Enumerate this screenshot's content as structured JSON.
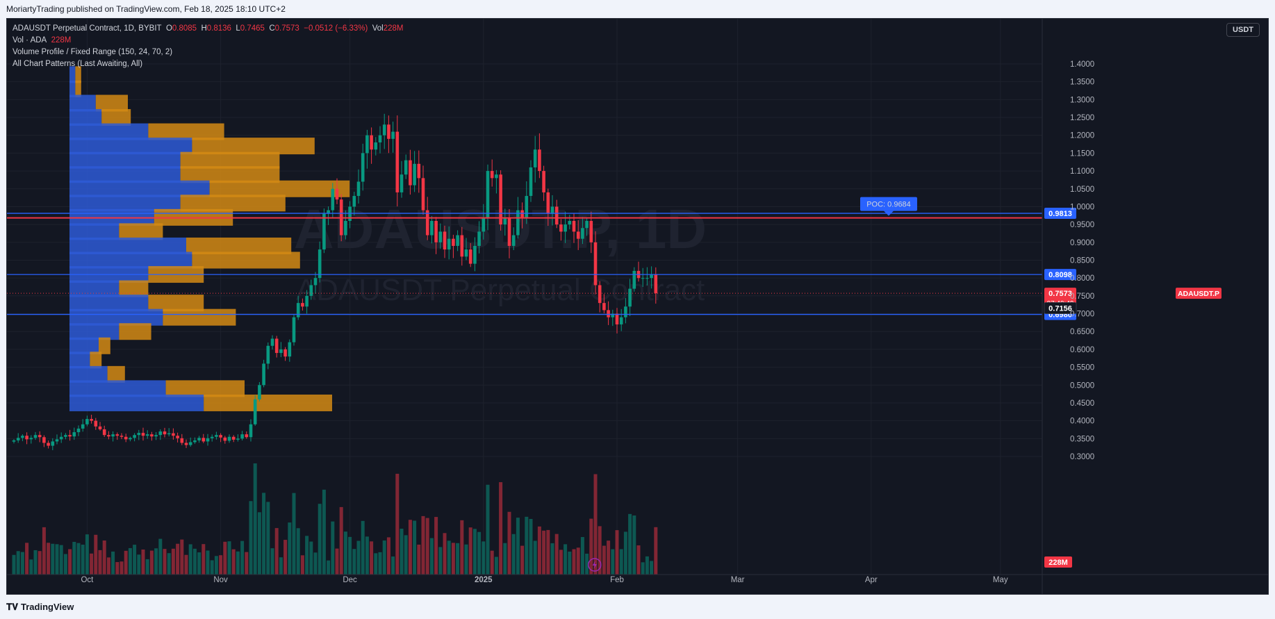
{
  "header": {
    "publisher": "MoriartyTrading published on TradingView.com, Feb 18, 2025 18:10 UTC+2",
    "brand": "TradingView"
  },
  "legend": {
    "symbol": "ADAUSDT Perpetual Contract, 1D, BYBIT",
    "o_label": "O",
    "o_value": "0.8085",
    "h_label": "H",
    "h_value": "0.8136",
    "l_label": "L",
    "l_value": "0.7465",
    "c_label": "C",
    "c_value": "0.7573",
    "change": "−0.0512 (−6.33%)",
    "vol_label": "Vol",
    "vol_value": "228M",
    "vol_line_label": "Vol · ADA",
    "vol_line_value": "228M",
    "indicator1": "Volume Profile / Fixed Range (150, 24, 70, 2)",
    "indicator2": "All Chart Patterns (Last Awaiting, All)"
  },
  "unit_button": "USDT",
  "watermark": {
    "big": "ADAUSDT.P, 1D",
    "small": "ADAUSDT Perpetual Contract"
  },
  "colors": {
    "bg": "#131722",
    "up": "#089981",
    "down": "#f23645",
    "level": "#2962ff",
    "poc": "#f23645",
    "vp_up": "#2e5bd6",
    "vp_down": "#d48a14"
  },
  "chart_data": {
    "type": "candlestick",
    "ylim": [
      0.25,
      1.44
    ],
    "y_ticks": [
      "1.4000",
      "1.3500",
      "1.3000",
      "1.2500",
      "1.2000",
      "1.1500",
      "1.1000",
      "1.0500",
      "1.0000",
      "0.9500",
      "0.9000",
      "0.8500",
      "0.8000",
      "0.7500",
      "0.7000",
      "0.6500",
      "0.6000",
      "0.5500",
      "0.5000",
      "0.4500",
      "0.4000",
      "0.3500",
      "0.3000"
    ],
    "x_ticks": [
      {
        "label": "Oct",
        "day": 17
      },
      {
        "label": "Nov",
        "day": 48
      },
      {
        "label": "Dec",
        "day": 78
      },
      {
        "label": "2025",
        "day": 109
      },
      {
        "label": "Feb",
        "day": 140
      },
      {
        "label": "Mar",
        "day": 168
      },
      {
        "label": "Apr",
        "day": 199
      },
      {
        "label": "May",
        "day": 229
      }
    ],
    "current_day": 134,
    "closes": [
      0.345,
      0.352,
      0.358,
      0.348,
      0.352,
      0.36,
      0.354,
      0.338,
      0.33,
      0.342,
      0.348,
      0.355,
      0.36,
      0.356,
      0.368,
      0.378,
      0.39,
      0.405,
      0.4,
      0.384,
      0.376,
      0.36,
      0.356,
      0.362,
      0.358,
      0.355,
      0.348,
      0.352,
      0.36,
      0.366,
      0.358,
      0.362,
      0.356,
      0.36,
      0.37,
      0.362,
      0.365,
      0.358,
      0.351,
      0.338,
      0.332,
      0.34,
      0.345,
      0.352,
      0.342,
      0.351,
      0.355,
      0.36,
      0.353,
      0.344,
      0.355,
      0.347,
      0.35,
      0.362,
      0.354,
      0.39,
      0.46,
      0.5,
      0.56,
      0.61,
      0.63,
      0.59,
      0.6,
      0.58,
      0.62,
      0.69,
      0.73,
      0.72,
      0.75,
      0.78,
      0.8,
      0.88,
      0.98,
      0.99,
      1.05,
      1.02,
      0.92,
      0.96,
      1.0,
      1.03,
      1.07,
      1.15,
      1.2,
      1.16,
      1.18,
      1.2,
      1.23,
      1.19,
      1.21,
      1.04,
      1.09,
      1.13,
      1.06,
      1.12,
      1.08,
      0.99,
      0.92,
      0.96,
      0.9,
      0.93,
      0.88,
      0.91,
      0.89,
      0.92,
      0.86,
      0.88,
      0.84,
      0.89,
      0.93,
      0.97,
      1.1,
      1.08,
      1.09,
      0.95,
      0.97,
      0.89,
      0.92,
      0.99,
      0.97,
      1.03,
      1.11,
      1.16,
      1.1,
      1.04,
      0.98,
      1.0,
      0.95,
      0.93,
      0.95,
      0.96,
      0.93,
      0.91,
      0.94,
      0.96,
      0.9,
      0.78,
      0.73,
      0.71,
      0.69,
      0.7,
      0.67,
      0.69,
      0.72,
      0.77,
      0.82,
      0.8,
      0.8,
      0.8,
      0.81,
      0.7573
    ],
    "volume_profile": [
      {
        "price": 1.37,
        "up": 0.02,
        "down": 0.02
      },
      {
        "price": 1.33,
        "up": 0.02,
        "down": 0.02
      },
      {
        "price": 1.29,
        "up": 0.09,
        "down": 0.11
      },
      {
        "price": 1.25,
        "up": 0.11,
        "down": 0.1
      },
      {
        "price": 1.21,
        "up": 0.27,
        "down": 0.26
      },
      {
        "price": 1.17,
        "up": 0.42,
        "down": 0.42
      },
      {
        "price": 1.13,
        "up": 0.38,
        "down": 0.34
      },
      {
        "price": 1.09,
        "up": 0.38,
        "down": 0.34
      },
      {
        "price": 1.05,
        "up": 0.48,
        "down": 0.48
      },
      {
        "price": 1.01,
        "up": 0.38,
        "down": 0.36
      },
      {
        "price": 0.97,
        "up": 0.29,
        "down": 0.27
      },
      {
        "price": 0.93,
        "up": 0.17,
        "down": 0.15
      },
      {
        "price": 0.89,
        "up": 0.4,
        "down": 0.36
      },
      {
        "price": 0.85,
        "up": 0.42,
        "down": 0.37
      },
      {
        "price": 0.81,
        "up": 0.27,
        "down": 0.19
      },
      {
        "price": 0.77,
        "up": 0.17,
        "down": 0.1
      },
      {
        "price": 0.73,
        "up": 0.27,
        "down": 0.19
      },
      {
        "price": 0.69,
        "up": 0.32,
        "down": 0.25
      },
      {
        "price": 0.65,
        "up": 0.17,
        "down": 0.11
      },
      {
        "price": 0.61,
        "up": 0.1,
        "down": 0.04
      },
      {
        "price": 0.57,
        "up": 0.07,
        "down": 0.04
      },
      {
        "price": 0.53,
        "up": 0.13,
        "down": 0.06
      },
      {
        "price": 0.49,
        "up": 0.33,
        "down": 0.27
      },
      {
        "price": 0.45,
        "up": 0.46,
        "down": 0.44
      }
    ],
    "levels": [
      {
        "value": 0.9813,
        "label": "0.9813",
        "color": "#2962ff"
      },
      {
        "value": 0.8098,
        "label": "0.8098",
        "color": "#2962ff"
      },
      {
        "value": 0.698,
        "label": "0.6980",
        "color": "#2962ff"
      }
    ],
    "poc": {
      "value": 0.9684,
      "label": "POC: 0.9684"
    },
    "price_tags": [
      {
        "value": 0.7573,
        "label": "0.7573",
        "sub": "07:49:49",
        "symbol": "ADAUSDT.P"
      },
      {
        "value": 0.7156,
        "label": "0.7156"
      }
    ],
    "volume_tag": "228M"
  }
}
